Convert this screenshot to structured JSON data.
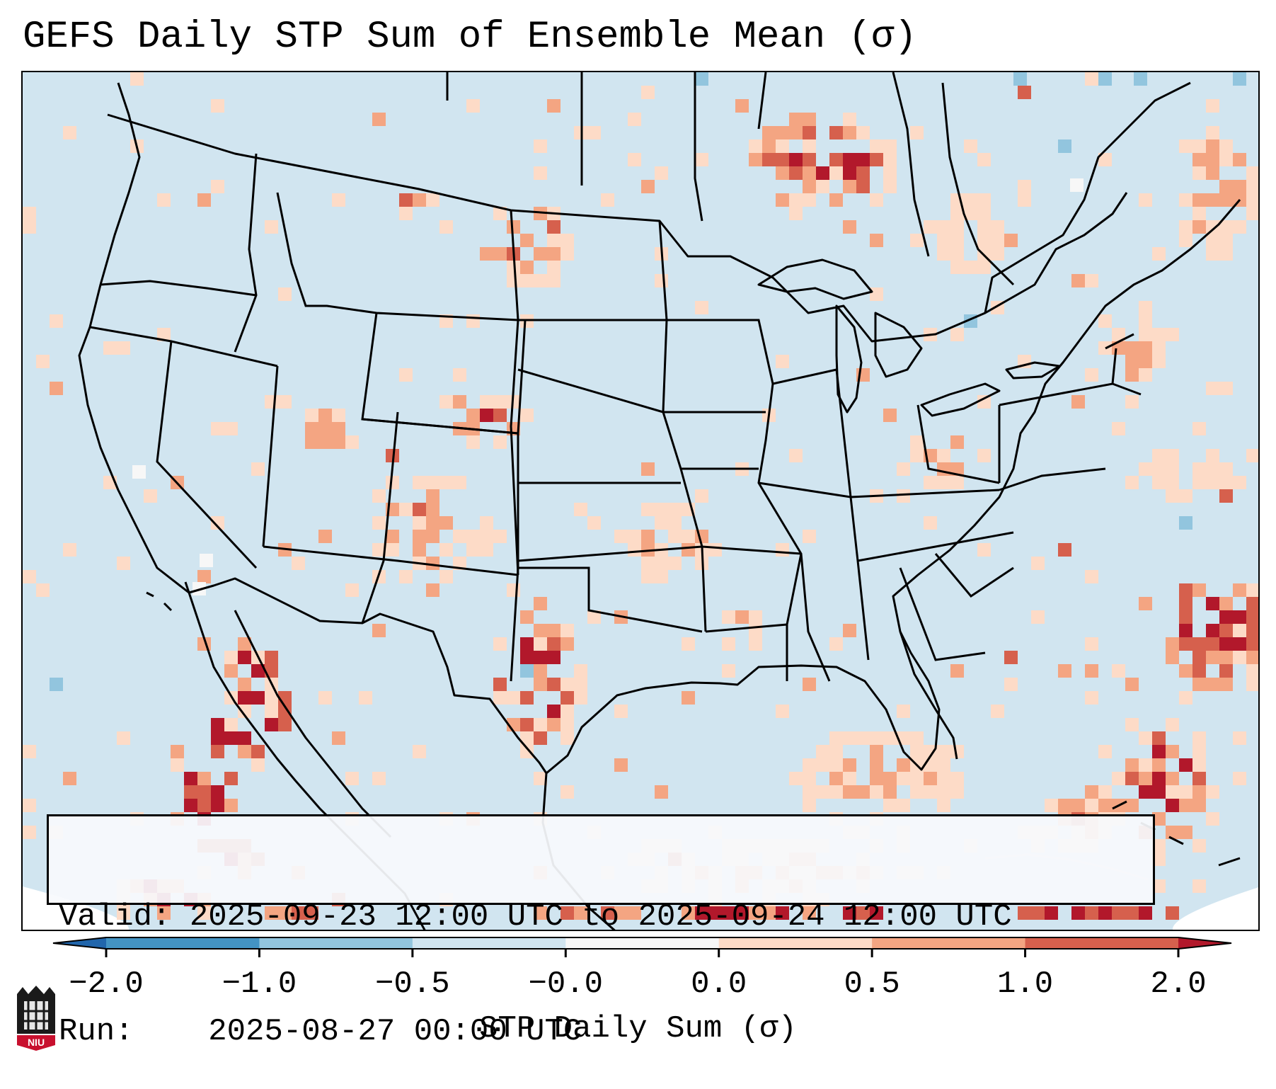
{
  "title": "GEFS Daily STP Sum of Ensemble Mean (σ)",
  "info": {
    "valid_label": "Valid:",
    "valid_value": "2025-09-23 12:00 UTC to 2025-09-24 12:00 UTC",
    "run_label": "Run:",
    "run_value": "2025-08-27 00:00 UTC"
  },
  "colorbar": {
    "label": "STP Daily Sum (σ)",
    "ticks": [
      "−2.0",
      "−1.0",
      "−0.5",
      "−0.0",
      "0.0",
      "0.5",
      "1.0",
      "2.0"
    ],
    "colors": [
      "#4393c3",
      "#92c5de",
      "#d1e5f0",
      "#f7f7f7",
      "#fddbc7",
      "#f4a582",
      "#d6604d"
    ],
    "under_color": "#2166ac",
    "over_color": "#b2182b"
  },
  "map": {
    "background_color": "#d1e5f0",
    "level_colors": [
      "#fddbc7",
      "#f4a582",
      "#d6604d",
      "#b2182b",
      "#92c5de",
      "#f7f7f7"
    ]
  },
  "logo": {
    "text": "NIU"
  }
}
